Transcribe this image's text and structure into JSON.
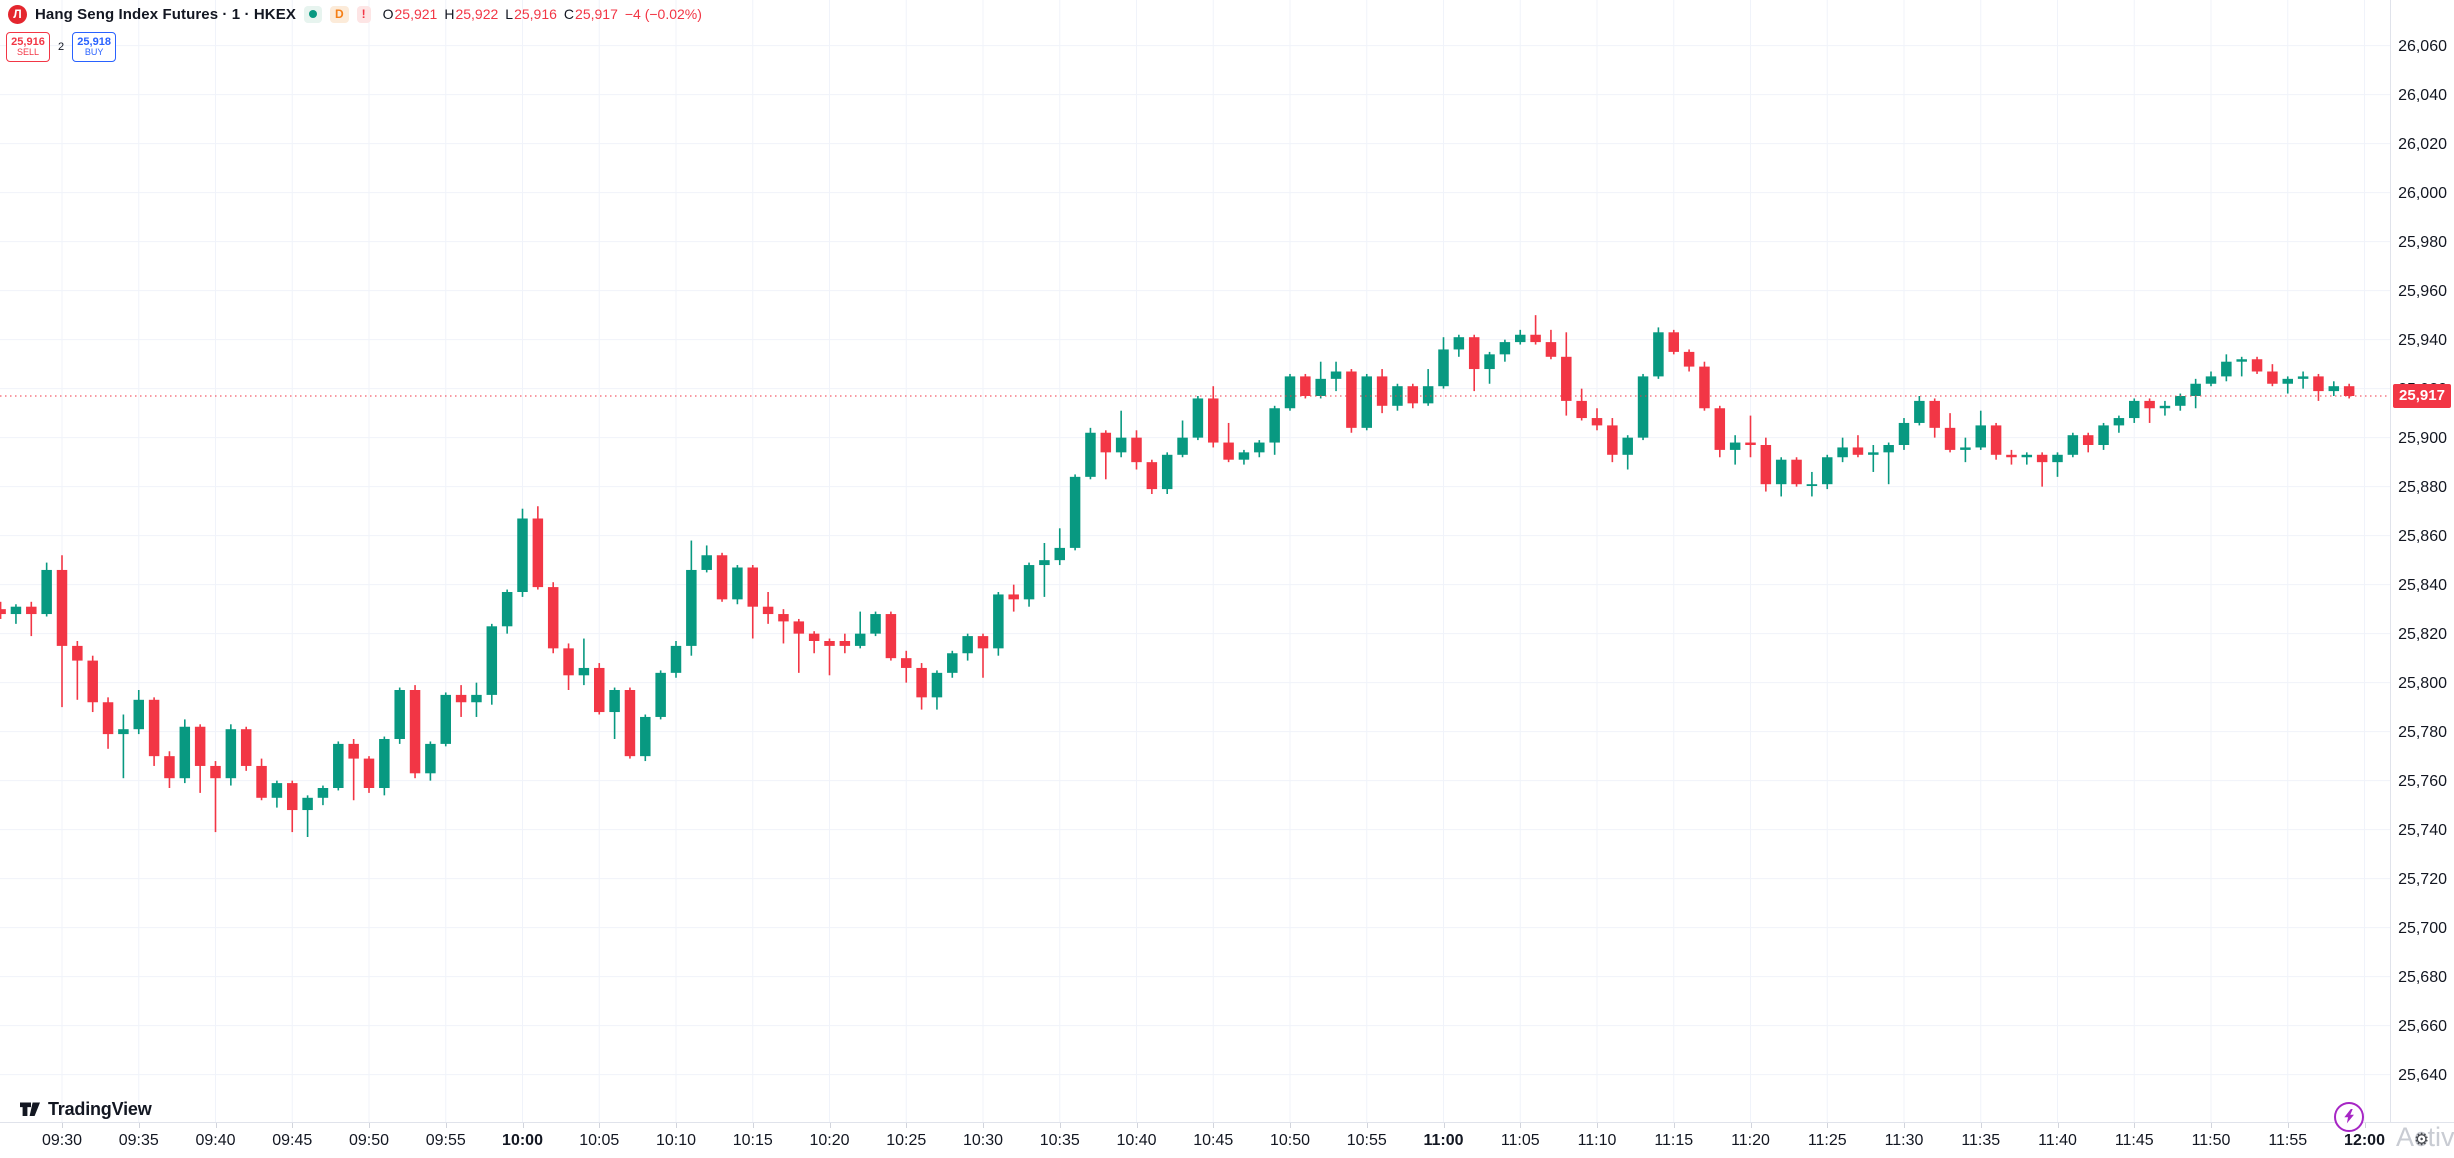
{
  "header": {
    "logo_glyph": "Л",
    "symbol_title": "Hang Seng Index Futures · 1 · HKEX",
    "market_status": "open",
    "delayed_badge": "D",
    "alert_badge": "!",
    "ohlc": {
      "o_key": "O",
      "o_val": "25,921",
      "h_key": "H",
      "h_val": "25,922",
      "l_key": "L",
      "l_val": "25,916",
      "c_key": "C",
      "c_val": "25,917",
      "change": "−4 (−0.02%)"
    },
    "order_panel": {
      "sell_price": "25,916",
      "sell_label": "SELL",
      "spread": "2",
      "buy_price": "25,918",
      "buy_label": "BUY"
    }
  },
  "footer": {
    "logo_text": "TradingView",
    "watermark_text": "Activa",
    "watermark_gear": "⚙"
  },
  "colors": {
    "up": "#089981",
    "down": "#f23645",
    "grid": "#f0f3fa",
    "axis_text": "#131722",
    "last_price_line": "#f23645",
    "buy_blue": "#2962ff",
    "lightning_purple": "#a626c4"
  },
  "axes": {
    "last_price": {
      "value": 25917,
      "label": "25,917"
    },
    "price_labels": [
      {
        "v": 26060,
        "label": "26,060"
      },
      {
        "v": 26040,
        "label": "26,040"
      },
      {
        "v": 26020,
        "label": "26,020"
      },
      {
        "v": 26000,
        "label": "26,000"
      },
      {
        "v": 25980,
        "label": "25,980"
      },
      {
        "v": 25960,
        "label": "25,960"
      },
      {
        "v": 25940,
        "label": "25,940"
      },
      {
        "v": 25920,
        "label": "25,920"
      },
      {
        "v": 25900,
        "label": "25,900"
      },
      {
        "v": 25880,
        "label": "25,880"
      },
      {
        "v": 25860,
        "label": "25,860"
      },
      {
        "v": 25840,
        "label": "25,840"
      },
      {
        "v": 25820,
        "label": "25,820"
      },
      {
        "v": 25800,
        "label": "25,800"
      },
      {
        "v": 25780,
        "label": "25,780"
      },
      {
        "v": 25760,
        "label": "25,760"
      },
      {
        "v": 25740,
        "label": "25,740"
      },
      {
        "v": 25720,
        "label": "25,720"
      },
      {
        "v": 25700,
        "label": "25,700"
      },
      {
        "v": 25680,
        "label": "25,680"
      },
      {
        "v": 25660,
        "label": "25,660"
      },
      {
        "v": 25640,
        "label": "25,640"
      }
    ],
    "time_labels": [
      {
        "t": "09:30",
        "bold": false
      },
      {
        "t": "09:35",
        "bold": false
      },
      {
        "t": "09:40",
        "bold": false
      },
      {
        "t": "09:45",
        "bold": false
      },
      {
        "t": "09:50",
        "bold": false
      },
      {
        "t": "09:55",
        "bold": false
      },
      {
        "t": "10:00",
        "bold": true
      },
      {
        "t": "10:05",
        "bold": false
      },
      {
        "t": "10:10",
        "bold": false
      },
      {
        "t": "10:15",
        "bold": false
      },
      {
        "t": "10:20",
        "bold": false
      },
      {
        "t": "10:25",
        "bold": false
      },
      {
        "t": "10:30",
        "bold": false
      },
      {
        "t": "10:35",
        "bold": false
      },
      {
        "t": "10:40",
        "bold": false
      },
      {
        "t": "10:45",
        "bold": false
      },
      {
        "t": "10:50",
        "bold": false
      },
      {
        "t": "10:55",
        "bold": false
      },
      {
        "t": "11:00",
        "bold": true
      },
      {
        "t": "11:05",
        "bold": false
      },
      {
        "t": "11:10",
        "bold": false
      },
      {
        "t": "11:15",
        "bold": false
      },
      {
        "t": "11:20",
        "bold": false
      },
      {
        "t": "11:25",
        "bold": false
      },
      {
        "t": "11:30",
        "bold": false
      },
      {
        "t": "11:35",
        "bold": false
      },
      {
        "t": "11:40",
        "bold": false
      },
      {
        "t": "11:45",
        "bold": false
      },
      {
        "t": "11:50",
        "bold": false
      },
      {
        "t": "11:55",
        "bold": false
      },
      {
        "t": "12:00",
        "bold": true
      }
    ]
  },
  "chart_data": {
    "type": "candlestick",
    "title": "Hang Seng Index Futures",
    "exchange": "HKEX",
    "interval": "1 minute",
    "session_range": [
      "09:26",
      "11:59"
    ],
    "y_range": [
      25737,
      25950
    ],
    "last_price": 25917,
    "columns": [
      "time",
      "open",
      "high",
      "low",
      "close"
    ],
    "candles": [
      [
        "09:26",
        25830,
        25833,
        25826,
        25828
      ],
      [
        "09:27",
        25828,
        25832,
        25824,
        25831
      ],
      [
        "09:28",
        25831,
        25833,
        25819,
        25828
      ],
      [
        "09:29",
        25828,
        25849,
        25827,
        25846
      ],
      [
        "09:30",
        25846,
        25852,
        25790,
        25815
      ],
      [
        "09:31",
        25815,
        25817,
        25793,
        25809
      ],
      [
        "09:32",
        25809,
        25811,
        25788,
        25792
      ],
      [
        "09:33",
        25792,
        25794,
        25773,
        25779
      ],
      [
        "09:34",
        25779,
        25787,
        25761,
        25781
      ],
      [
        "09:35",
        25781,
        25797,
        25779,
        25793
      ],
      [
        "09:36",
        25793,
        25794,
        25766,
        25770
      ],
      [
        "09:37",
        25770,
        25772,
        25757,
        25761
      ],
      [
        "09:38",
        25761,
        25785,
        25759,
        25782
      ],
      [
        "09:39",
        25782,
        25783,
        25755,
        25766
      ],
      [
        "09:40",
        25766,
        25768,
        25739,
        25761
      ],
      [
        "09:41",
        25761,
        25783,
        25758,
        25781
      ],
      [
        "09:42",
        25781,
        25782,
        25764,
        25766
      ],
      [
        "09:43",
        25766,
        25769,
        25752,
        25753
      ],
      [
        "09:44",
        25753,
        25760,
        25749,
        25759
      ],
      [
        "09:45",
        25759,
        25760,
        25739,
        25748
      ],
      [
        "09:46",
        25748,
        25754,
        25737,
        25753
      ],
      [
        "09:47",
        25753,
        25758,
        25750,
        25757
      ],
      [
        "09:48",
        25757,
        25776,
        25756,
        25775
      ],
      [
        "09:49",
        25775,
        25777,
        25752,
        25769
      ],
      [
        "09:50",
        25769,
        25770,
        25755,
        25757
      ],
      [
        "09:51",
        25757,
        25778,
        25754,
        25777
      ],
      [
        "09:52",
        25777,
        25798,
        25775,
        25797
      ],
      [
        "09:53",
        25797,
        25799,
        25761,
        25763
      ],
      [
        "09:54",
        25763,
        25776,
        25760,
        25775
      ],
      [
        "09:55",
        25775,
        25796,
        25774,
        25795
      ],
      [
        "09:56",
        25795,
        25799,
        25786,
        25792
      ],
      [
        "09:57",
        25792,
        25800,
        25786,
        25795
      ],
      [
        "09:58",
        25795,
        25824,
        25791,
        25823
      ],
      [
        "09:59",
        25823,
        25838,
        25820,
        25837
      ],
      [
        "10:00",
        25837,
        25871,
        25835,
        25867
      ],
      [
        "10:01",
        25867,
        25872,
        25838,
        25839
      ],
      [
        "10:02",
        25839,
        25841,
        25812,
        25814
      ],
      [
        "10:03",
        25814,
        25816,
        25797,
        25803
      ],
      [
        "10:04",
        25803,
        25818,
        25799,
        25806
      ],
      [
        "10:05",
        25806,
        25808,
        25787,
        25788
      ],
      [
        "10:06",
        25788,
        25798,
        25777,
        25797
      ],
      [
        "10:07",
        25797,
        25798,
        25769,
        25770
      ],
      [
        "10:08",
        25770,
        25787,
        25768,
        25786
      ],
      [
        "10:09",
        25786,
        25805,
        25785,
        25804
      ],
      [
        "10:10",
        25804,
        25817,
        25802,
        25815
      ],
      [
        "10:11",
        25815,
        25858,
        25811,
        25846
      ],
      [
        "10:12",
        25846,
        25856,
        25845,
        25852
      ],
      [
        "10:13",
        25852,
        25853,
        25833,
        25834
      ],
      [
        "10:14",
        25834,
        25848,
        25832,
        25847
      ],
      [
        "10:15",
        25847,
        25848,
        25818,
        25831
      ],
      [
        "10:16",
        25831,
        25837,
        25824,
        25828
      ],
      [
        "10:17",
        25828,
        25830,
        25816,
        25825
      ],
      [
        "10:18",
        25825,
        25826,
        25804,
        25820
      ],
      [
        "10:19",
        25820,
        25821,
        25812,
        25817
      ],
      [
        "10:20",
        25817,
        25818,
        25803,
        25815
      ],
      [
        "10:21",
        25817,
        25820,
        25812,
        25815
      ],
      [
        "10:22",
        25815,
        25829,
        25814,
        25820
      ],
      [
        "10:23",
        25820,
        25829,
        25819,
        25828
      ],
      [
        "10:24",
        25828,
        25829,
        25809,
        25810
      ],
      [
        "10:25",
        25810,
        25813,
        25800,
        25806
      ],
      [
        "10:26",
        25806,
        25808,
        25789,
        25794
      ],
      [
        "10:27",
        25794,
        25805,
        25789,
        25804
      ],
      [
        "10:28",
        25804,
        25813,
        25802,
        25812
      ],
      [
        "10:29",
        25812,
        25820,
        25809,
        25819
      ],
      [
        "10:30",
        25819,
        25820,
        25802,
        25814
      ],
      [
        "10:31",
        25814,
        25837,
        25811,
        25836
      ],
      [
        "10:32",
        25836,
        25840,
        25829,
        25834
      ],
      [
        "10:33",
        25834,
        25849,
        25831,
        25848
      ],
      [
        "10:34",
        25848,
        25857,
        25835,
        25850
      ],
      [
        "10:35",
        25850,
        25863,
        25848,
        25855
      ],
      [
        "10:36",
        25855,
        25885,
        25854,
        25884
      ],
      [
        "10:37",
        25884,
        25904,
        25883,
        25902
      ],
      [
        "10:38",
        25902,
        25903,
        25883,
        25894
      ],
      [
        "10:39",
        25894,
        25911,
        25892,
        25900
      ],
      [
        "10:40",
        25900,
        25903,
        25887,
        25890
      ],
      [
        "10:41",
        25890,
        25891,
        25877,
        25879
      ],
      [
        "10:42",
        25879,
        25894,
        25877,
        25893
      ],
      [
        "10:43",
        25893,
        25907,
        25892,
        25900
      ],
      [
        "10:44",
        25900,
        25917,
        25899,
        25916
      ],
      [
        "10:45",
        25916,
        25921,
        25896,
        25898
      ],
      [
        "10:46",
        25898,
        25906,
        25890,
        25891
      ],
      [
        "10:47",
        25891,
        25895,
        25889,
        25894
      ],
      [
        "10:48",
        25894,
        25899,
        25892,
        25898
      ],
      [
        "10:49",
        25898,
        25913,
        25893,
        25912
      ],
      [
        "10:50",
        25912,
        25926,
        25911,
        25925
      ],
      [
        "10:51",
        25925,
        25926,
        25916,
        25917
      ],
      [
        "10:52",
        25917,
        25931,
        25916,
        25924
      ],
      [
        "10:53",
        25924,
        25931,
        25919,
        25927
      ],
      [
        "10:54",
        25927,
        25928,
        25902,
        25904
      ],
      [
        "10:55",
        25904,
        25926,
        25903,
        25925
      ],
      [
        "10:56",
        25925,
        25928,
        25910,
        25913
      ],
      [
        "10:57",
        25913,
        25922,
        25911,
        25921
      ],
      [
        "10:58",
        25921,
        25922,
        25912,
        25914
      ],
      [
        "10:59",
        25914,
        25928,
        25913,
        25921
      ],
      [
        "11:00",
        25921,
        25941,
        25920,
        25936
      ],
      [
        "11:01",
        25936,
        25942,
        25933,
        25941
      ],
      [
        "11:02",
        25941,
        25942,
        25919,
        25928
      ],
      [
        "11:03",
        25928,
        25935,
        25922,
        25934
      ],
      [
        "11:04",
        25934,
        25940,
        25931,
        25939
      ],
      [
        "11:05",
        25939,
        25944,
        25938,
        25942
      ],
      [
        "11:06",
        25942,
        25950,
        25938,
        25939
      ],
      [
        "11:07",
        25939,
        25944,
        25932,
        25933
      ],
      [
        "11:08",
        25933,
        25943,
        25909,
        25915
      ],
      [
        "11:09",
        25915,
        25920,
        25907,
        25908
      ],
      [
        "11:10",
        25908,
        25912,
        25903,
        25905
      ],
      [
        "11:11",
        25905,
        25908,
        25890,
        25893
      ],
      [
        "11:12",
        25893,
        25901,
        25887,
        25900
      ],
      [
        "11:13",
        25900,
        25926,
        25899,
        25925
      ],
      [
        "11:14",
        25925,
        25945,
        25924,
        25943
      ],
      [
        "11:15",
        25943,
        25944,
        25934,
        25935
      ],
      [
        "11:16",
        25935,
        25936,
        25927,
        25929
      ],
      [
        "11:17",
        25929,
        25931,
        25911,
        25912
      ],
      [
        "11:18",
        25912,
        25913,
        25892,
        25895
      ],
      [
        "11:19",
        25895,
        25901,
        25889,
        25898
      ],
      [
        "11:20",
        25898,
        25909,
        25892,
        25897
      ],
      [
        "11:21",
        25897,
        25900,
        25878,
        25881
      ],
      [
        "11:22",
        25881,
        25892,
        25876,
        25891
      ],
      [
        "11:23",
        25891,
        25892,
        25880,
        25881
      ],
      [
        "11:24",
        25881,
        25886,
        25876,
        25881
      ],
      [
        "11:25",
        25881,
        25893,
        25879,
        25892
      ],
      [
        "11:26",
        25892,
        25900,
        25890,
        25896
      ],
      [
        "11:27",
        25896,
        25901,
        25892,
        25893
      ],
      [
        "11:28",
        25893,
        25897,
        25886,
        25894
      ],
      [
        "11:29",
        25894,
        25898,
        25881,
        25897
      ],
      [
        "11:30",
        25897,
        25908,
        25895,
        25906
      ],
      [
        "11:31",
        25906,
        25917,
        25905,
        25915
      ],
      [
        "11:32",
        25915,
        25916,
        25900,
        25904
      ],
      [
        "11:33",
        25904,
        25910,
        25894,
        25895
      ],
      [
        "11:34",
        25895,
        25900,
        25890,
        25896
      ],
      [
        "11:35",
        25896,
        25911,
        25895,
        25905
      ],
      [
        "11:36",
        25905,
        25906,
        25891,
        25893
      ],
      [
        "11:37",
        25893,
        25895,
        25889,
        25892
      ],
      [
        "11:38",
        25892,
        25894,
        25889,
        25893
      ],
      [
        "11:39",
        25893,
        25894,
        25880,
        25890
      ],
      [
        "11:40",
        25890,
        25894,
        25884,
        25893
      ],
      [
        "11:41",
        25893,
        25902,
        25892,
        25901
      ],
      [
        "11:42",
        25901,
        25902,
        25894,
        25897
      ],
      [
        "11:43",
        25897,
        25906,
        25895,
        25905
      ],
      [
        "11:44",
        25905,
        25909,
        25902,
        25908
      ],
      [
        "11:45",
        25908,
        25916,
        25906,
        25915
      ],
      [
        "11:46",
        25915,
        25916,
        25906,
        25912
      ],
      [
        "11:47",
        25912,
        25915,
        25909,
        25913
      ],
      [
        "11:48",
        25913,
        25918,
        25911,
        25917
      ],
      [
        "11:49",
        25917,
        25924,
        25912,
        25922
      ],
      [
        "11:50",
        25922,
        25927,
        25921,
        25925
      ],
      [
        "11:51",
        25925,
        25934,
        25923,
        25931
      ],
      [
        "11:52",
        25931,
        25933,
        25925,
        25932
      ],
      [
        "11:53",
        25932,
        25933,
        25926,
        25927
      ],
      [
        "11:54",
        25927,
        25930,
        25921,
        25922
      ],
      [
        "11:55",
        25922,
        25925,
        25918,
        25924
      ],
      [
        "11:56",
        25924,
        25927,
        25920,
        25925
      ],
      [
        "11:57",
        25925,
        25926,
        25915,
        25919
      ],
      [
        "11:58",
        25919,
        25923,
        25917,
        25921
      ],
      [
        "11:59",
        25921,
        25922,
        25916,
        25917
      ]
    ]
  }
}
